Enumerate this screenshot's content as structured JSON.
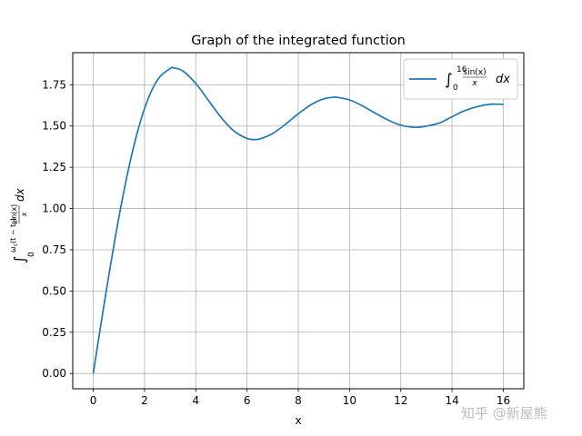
{
  "chart_data": {
    "type": "line",
    "title": "Graph of the integrated function",
    "xlabel": "x",
    "ylabel": "∫₀^{ωc(t−td)} sin(x)/x dx",
    "xlim": [
      -0.8,
      16.8
    ],
    "ylim": [
      -0.0926,
      1.9446
    ],
    "grid": true,
    "legend_position": "top-right",
    "x_ticks": [
      0,
      2,
      4,
      6,
      8,
      10,
      12,
      14,
      16
    ],
    "x_tick_labels": [
      "0",
      "2",
      "4",
      "6",
      "8",
      "10",
      "12",
      "14",
      "16"
    ],
    "y_ticks": [
      0.0,
      0.25,
      0.5,
      0.75,
      1.0,
      1.25,
      1.5,
      1.75
    ],
    "y_tick_labels": [
      "0.00",
      "0.25",
      "0.50",
      "0.75",
      "1.00",
      "1.25",
      "1.50",
      "1.75"
    ],
    "series": [
      {
        "name": "∫₀^16 sin(x)/x dx",
        "color": "#1f77b4",
        "x": [
          0,
          0.5,
          1,
          1.5,
          2,
          2.5,
          3,
          3.14159,
          3.5,
          4,
          4.5,
          5,
          5.5,
          6,
          6.28319,
          6.5,
          7,
          7.5,
          8,
          8.5,
          9,
          9.42478,
          9.5,
          10,
          10.5,
          11,
          11.5,
          12,
          12.5664,
          13,
          13.5,
          14,
          14.5,
          15,
          15.5,
          16
        ],
        "y": [
          0,
          0.4931,
          0.9461,
          1.3247,
          1.6054,
          1.7785,
          1.8487,
          1.8519,
          1.8331,
          1.7582,
          1.6541,
          1.5499,
          1.4687,
          1.4247,
          1.4182,
          1.4218,
          1.4546,
          1.5107,
          1.5742,
          1.6296,
          1.665,
          1.6748,
          1.6745,
          1.6583,
          1.6228,
          1.5783,
          1.5366,
          1.505,
          1.4922,
          1.4994,
          1.518,
          1.5562,
          1.5933,
          1.6182,
          1.6322,
          1.6313
        ]
      }
    ]
  },
  "watermark": "知乎 @新屋熊"
}
